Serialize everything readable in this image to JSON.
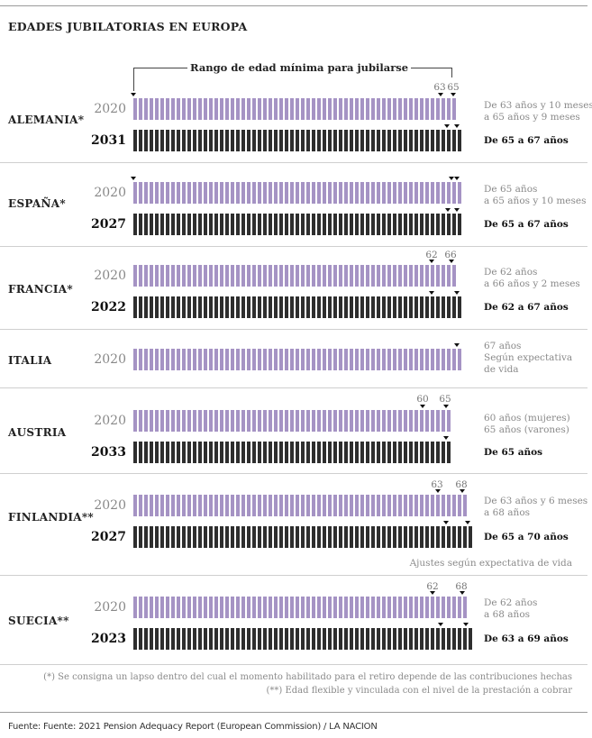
{
  "title": "EDADES JUBILATORIAS EN EUROPA",
  "range_label": "Rango de edad mínima para jubilarse",
  "ajustes_note": "Ajustes según expectativa de vida",
  "footnotes": [
    "(*) Se consigna un lapso dentro del cual el momento habilitado para el retiro depende de las contribuciones hechas",
    "(**) Edad flexible y vinculada con el nivel de la prestación a cobrar"
  ],
  "source": "Fuente: Fuente: 2021 Pension Adequacy Report (European Commission) / LA NACION",
  "colors": {
    "current": "#a593c4",
    "future": "#2e2e2e"
  },
  "chart_data": {
    "type": "bar",
    "title": "EDADES JUBILATORIAS EN EUROPA",
    "xlabel": "",
    "ylabel": "",
    "countries": [
      {
        "name": "ALEMANIA*",
        "rows": [
          {
            "year": "2020",
            "kind": "current",
            "range": [
              63.83,
              65.75
            ],
            "desc": [
              "De 63 años y 10 meses",
              "a 65 años y 9 meses"
            ],
            "tick_labels": [
              "63",
              "65"
            ]
          },
          {
            "year": "2031",
            "kind": "future",
            "range": [
              65,
              67
            ],
            "desc": [
              "De 65 a 67 años"
            ],
            "tick_labels": []
          }
        ]
      },
      {
        "name": "ESPAÑA*",
        "rows": [
          {
            "year": "2020",
            "kind": "current",
            "range": [
              65,
              65.83
            ],
            "desc": [
              "De 65 años",
              "a 65 años y 10 meses"
            ],
            "tick_labels": []
          },
          {
            "year": "2027",
            "kind": "future",
            "range": [
              65,
              67
            ],
            "desc": [
              "De 65 a 67 años"
            ],
            "tick_labels": []
          }
        ]
      },
      {
        "name": "FRANCIA*",
        "rows": [
          {
            "year": "2020",
            "kind": "current",
            "range": [
              62,
              66.17
            ],
            "desc": [
              "De 62 años",
              "a 66 años y 2 meses"
            ],
            "tick_labels": [
              "62",
              "66"
            ]
          },
          {
            "year": "2022",
            "kind": "future",
            "range": [
              62,
              67
            ],
            "desc": [
              "De 62 a 67 años"
            ],
            "tick_labels": []
          }
        ]
      },
      {
        "name": "ITALIA",
        "rows": [
          {
            "year": "2020",
            "kind": "current",
            "range": [
              67,
              67
            ],
            "desc": [
              "67 años",
              "Según expectativa",
              "de vida"
            ],
            "tick_labels": []
          }
        ]
      },
      {
        "name": "AUSTRIA",
        "rows": [
          {
            "year": "2020",
            "kind": "current",
            "range": [
              60,
              65
            ],
            "desc": [
              "60 años (mujeres)",
              "65 años (varones)"
            ],
            "tick_labels": [
              "60",
              "65"
            ]
          },
          {
            "year": "2033",
            "kind": "future",
            "range": [
              65,
              65
            ],
            "desc": [
              "De 65 años"
            ],
            "tick_labels": []
          }
        ]
      },
      {
        "name": "FINLANDIA**",
        "rows": [
          {
            "year": "2020",
            "kind": "current",
            "range": [
              63.5,
              68
            ],
            "desc": [
              "De 63 años y 6 meses",
              "a 68 años"
            ],
            "tick_labels": [
              "63",
              "68"
            ]
          },
          {
            "year": "2027",
            "kind": "future",
            "range": [
              65,
              70
            ],
            "desc": [
              "De 65 a 70 años"
            ],
            "tick_labels": []
          }
        ]
      },
      {
        "name": "SUECIA**",
        "rows": [
          {
            "year": "2020",
            "kind": "current",
            "range": [
              62,
              68
            ],
            "desc": [
              "De 62 años",
              "a 68 años"
            ],
            "tick_labels": [
              "62",
              "68"
            ]
          },
          {
            "year": "2023",
            "kind": "future",
            "range": [
              63,
              69
            ],
            "desc": [
              "De 63 a 69 años"
            ],
            "tick_labels": []
          }
        ]
      }
    ]
  }
}
